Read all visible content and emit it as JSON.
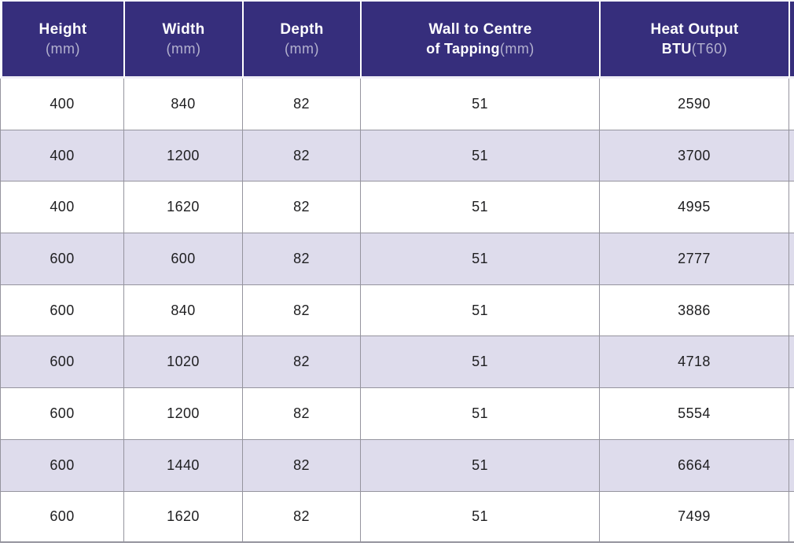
{
  "colors": {
    "header_bg": "#362e7c",
    "header_text": "#ffffff",
    "header_unit_text": "#b3b1ce",
    "row_bg": "#ffffff",
    "row_alt_bg": "#dedcec",
    "grid_line": "#95949e",
    "cell_text": "#1e1e20"
  },
  "table": {
    "columns": [
      {
        "id": "height",
        "line1_bold": "Height",
        "line2_bold": "",
        "line2_light": "(mm)"
      },
      {
        "id": "width",
        "line1_bold": "Width",
        "line2_bold": "",
        "line2_light": "(mm)"
      },
      {
        "id": "depth",
        "line1_bold": "Depth",
        "line2_bold": "",
        "line2_light": "(mm)"
      },
      {
        "id": "wall-to-centre-of-tapping",
        "line1_bold": "Wall to Centre",
        "line2_bold": "of Tapping",
        "line2_light": "(mm)"
      },
      {
        "id": "heat-output-btu",
        "line1_bold": "Heat Output",
        "line2_bold": "BTU",
        "line2_light": "(T60)"
      }
    ],
    "rows": [
      [
        "400",
        "840",
        "82",
        "51",
        "2590"
      ],
      [
        "400",
        "1200",
        "82",
        "51",
        "3700"
      ],
      [
        "400",
        "1620",
        "82",
        "51",
        "4995"
      ],
      [
        "600",
        "600",
        "82",
        "51",
        "2777"
      ],
      [
        "600",
        "840",
        "82",
        "51",
        "3886"
      ],
      [
        "600",
        "1020",
        "82",
        "51",
        "4718"
      ],
      [
        "600",
        "1200",
        "82",
        "51",
        "5554"
      ],
      [
        "600",
        "1440",
        "82",
        "51",
        "6664"
      ],
      [
        "600",
        "1620",
        "82",
        "51",
        "7499"
      ]
    ]
  }
}
